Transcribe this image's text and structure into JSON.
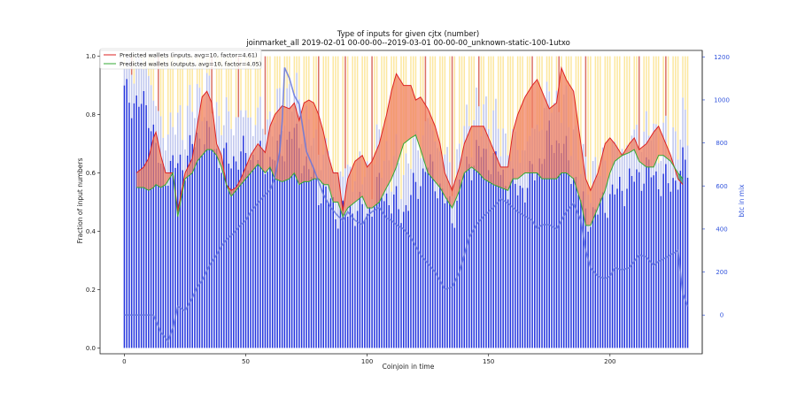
{
  "chart_data": {
    "type": "line",
    "title": "Type of inputs for given cjtx (number)",
    "subtitle": "joinmarket_all 2019-02-01 00-00-00--2019-03-01 00-00-00_unknown-static-100-1utxo",
    "xlabel": "Coinjoin in time",
    "ylabel": "Fraction of input numbers",
    "y2label": "btc in mix",
    "xlim": [
      -10,
      238
    ],
    "ylim": [
      -0.02,
      1.02
    ],
    "y2lim": [
      -180,
      1230
    ],
    "xticks": [
      0,
      50,
      100,
      150,
      200
    ],
    "yticks": [
      0.0,
      0.2,
      0.4,
      0.6,
      0.8,
      1.0
    ],
    "y2ticks": [
      0,
      200,
      400,
      600,
      800,
      1000,
      1200
    ],
    "xtick_labels": [
      "0",
      "50",
      "100",
      "150",
      "200"
    ],
    "ytick_labels": [
      "0.0",
      "0.2",
      "0.4",
      "0.6",
      "0.8",
      "1.0"
    ],
    "y2tick_labels": [
      "0",
      "200",
      "400",
      "600",
      "800",
      "1000",
      "1200"
    ],
    "legend_position": "top-left",
    "grid": false,
    "bars": {
      "count": 233,
      "description_colors": {
        "base": "#2233dd",
        "mid": "#bfc6ee",
        "top": "#fbe38e",
        "accent": "#cc3322"
      },
      "base_top_keypoints": {
        "x": [
          0,
          5,
          10,
          15,
          20,
          25,
          30,
          35,
          40,
          45,
          50,
          55,
          60,
          65,
          70,
          75,
          80,
          85,
          90,
          95,
          100,
          105,
          110,
          115,
          120,
          125,
          130,
          135,
          140,
          145,
          150,
          155,
          160,
          165,
          170,
          175,
          180,
          185,
          190,
          195,
          200,
          205,
          210,
          215,
          220,
          225,
          230,
          233
        ],
        "y": [
          0.87,
          0.84,
          0.82,
          0.6,
          0.62,
          0.64,
          0.72,
          0.72,
          0.64,
          0.65,
          0.66,
          0.65,
          0.64,
          0.69,
          0.74,
          0.62,
          0.55,
          0.5,
          0.45,
          0.48,
          0.46,
          0.55,
          0.5,
          0.47,
          0.55,
          0.63,
          0.55,
          0.45,
          0.6,
          0.67,
          0.66,
          0.6,
          0.55,
          0.55,
          0.62,
          0.72,
          0.7,
          0.6,
          0.45,
          0.47,
          0.52,
          0.55,
          0.58,
          0.61,
          0.58,
          0.56,
          0.62,
          0.62
        ]
      }
    },
    "series": [
      {
        "name": "Predicted wallets (inputs, avg=10, factor=4.61)",
        "color": "#dd2222",
        "x": [
          5,
          8,
          10,
          12,
          13,
          15,
          17,
          20,
          22,
          25,
          28,
          30,
          32,
          34,
          36,
          38,
          40,
          42,
          44,
          46,
          48,
          50,
          52,
          55,
          58,
          60,
          62,
          65,
          68,
          70,
          72,
          74,
          76,
          78,
          80,
          82,
          84,
          86,
          88,
          90,
          92,
          95,
          98,
          100,
          102,
          105,
          108,
          110,
          112,
          115,
          118,
          120,
          122,
          125,
          128,
          130,
          132,
          135,
          138,
          140,
          143,
          146,
          148,
          150,
          152,
          155,
          158,
          160,
          162,
          165,
          168,
          170,
          172,
          175,
          178,
          180,
          182,
          185,
          188,
          190,
          192,
          195,
          198,
          200,
          202,
          205,
          208,
          210,
          212,
          215,
          218,
          220,
          222,
          225,
          228,
          230
        ],
        "y": [
          0.6,
          0.62,
          0.65,
          0.72,
          0.74,
          0.66,
          0.6,
          0.6,
          0.47,
          0.6,
          0.65,
          0.76,
          0.86,
          0.88,
          0.84,
          0.7,
          0.66,
          0.56,
          0.54,
          0.55,
          0.58,
          0.62,
          0.66,
          0.7,
          0.67,
          0.76,
          0.8,
          0.83,
          0.82,
          0.84,
          0.78,
          0.84,
          0.85,
          0.84,
          0.8,
          0.74,
          0.66,
          0.6,
          0.6,
          0.47,
          0.58,
          0.64,
          0.66,
          0.62,
          0.64,
          0.7,
          0.8,
          0.88,
          0.94,
          0.9,
          0.9,
          0.85,
          0.86,
          0.82,
          0.76,
          0.7,
          0.6,
          0.54,
          0.62,
          0.7,
          0.76,
          0.76,
          0.76,
          0.72,
          0.68,
          0.62,
          0.62,
          0.74,
          0.8,
          0.86,
          0.9,
          0.92,
          0.88,
          0.82,
          0.84,
          0.96,
          0.92,
          0.88,
          0.7,
          0.58,
          0.54,
          0.6,
          0.7,
          0.72,
          0.7,
          0.66,
          0.7,
          0.72,
          0.68,
          0.7,
          0.74,
          0.76,
          0.72,
          0.66,
          0.58,
          0.56
        ]
      },
      {
        "name": "Predicted wallets (outputs, avg=10, factor=4.05)",
        "color": "#33aa33",
        "x": [
          5,
          8,
          10,
          12,
          13,
          15,
          17,
          20,
          22,
          25,
          28,
          30,
          32,
          34,
          36,
          38,
          40,
          42,
          44,
          46,
          48,
          50,
          52,
          55,
          58,
          60,
          62,
          65,
          68,
          70,
          72,
          74,
          76,
          78,
          80,
          82,
          84,
          86,
          88,
          90,
          92,
          95,
          98,
          100,
          102,
          105,
          108,
          110,
          112,
          115,
          118,
          120,
          122,
          125,
          128,
          130,
          132,
          135,
          138,
          140,
          143,
          146,
          148,
          150,
          152,
          155,
          158,
          160,
          162,
          165,
          168,
          170,
          172,
          175,
          178,
          180,
          182,
          185,
          188,
          190,
          192,
          195,
          198,
          200,
          202,
          205,
          208,
          210,
          212,
          215,
          218,
          220,
          222,
          225,
          228,
          230
        ],
        "y": [
          0.55,
          0.55,
          0.54,
          0.55,
          0.56,
          0.55,
          0.56,
          0.6,
          0.45,
          0.58,
          0.6,
          0.64,
          0.66,
          0.68,
          0.68,
          0.66,
          0.62,
          0.56,
          0.52,
          0.54,
          0.56,
          0.58,
          0.6,
          0.63,
          0.6,
          0.62,
          0.58,
          0.57,
          0.58,
          0.6,
          0.56,
          0.57,
          0.57,
          0.58,
          0.58,
          0.56,
          0.56,
          0.5,
          0.5,
          0.45,
          0.48,
          0.5,
          0.52,
          0.48,
          0.48,
          0.5,
          0.55,
          0.58,
          0.62,
          0.7,
          0.72,
          0.73,
          0.68,
          0.6,
          0.57,
          0.55,
          0.52,
          0.48,
          0.54,
          0.6,
          0.62,
          0.6,
          0.58,
          0.57,
          0.56,
          0.55,
          0.54,
          0.58,
          0.58,
          0.6,
          0.6,
          0.6,
          0.58,
          0.58,
          0.58,
          0.6,
          0.6,
          0.58,
          0.5,
          0.42,
          0.42,
          0.48,
          0.54,
          0.6,
          0.64,
          0.66,
          0.67,
          0.68,
          0.64,
          0.62,
          0.62,
          0.66,
          0.66,
          0.64,
          0.6,
          0.58
        ]
      },
      {
        "name": "btc in mix",
        "color": "#6677dd",
        "axis": "right",
        "x": [
          0,
          5,
          10,
          12,
          15,
          18,
          20,
          22,
          25,
          28,
          30,
          32,
          35,
          38,
          40,
          42,
          45,
          48,
          50,
          52,
          55,
          58,
          60,
          62,
          64,
          65,
          66,
          68,
          70,
          72,
          75,
          78,
          80,
          82,
          85,
          88,
          90,
          92,
          95,
          98,
          100,
          102,
          105,
          108,
          110,
          112,
          115,
          118,
          120,
          122,
          125,
          128,
          130,
          132,
          135,
          138,
          140,
          142,
          145,
          148,
          150,
          152,
          155,
          158,
          160,
          162,
          165,
          168,
          170,
          172,
          175,
          178,
          180,
          182,
          185,
          188,
          190,
          192,
          195,
          198,
          200,
          202,
          205,
          208,
          210,
          212,
          215,
          218,
          220,
          222,
          225,
          228,
          230,
          232
        ],
        "y": [
          0,
          0,
          0,
          0,
          -80,
          -120,
          -60,
          40,
          20,
          80,
          130,
          160,
          230,
          280,
          320,
          350,
          380,
          420,
          440,
          480,
          520,
          560,
          580,
          640,
          760,
          900,
          1150,
          1100,
          1020,
          980,
          760,
          680,
          620,
          560,
          500,
          460,
          440,
          480,
          440,
          420,
          460,
          480,
          500,
          450,
          440,
          420,
          400,
          360,
          320,
          280,
          240,
          200,
          160,
          120,
          130,
          200,
          280,
          360,
          420,
          460,
          480,
          500,
          540,
          520,
          500,
          480,
          460,
          440,
          400,
          420,
          420,
          400,
          440,
          480,
          520,
          440,
          300,
          220,
          180,
          170,
          180,
          220,
          210,
          220,
          250,
          280,
          270,
          230,
          250,
          260,
          280,
          300,
          100,
          40
        ]
      }
    ]
  }
}
